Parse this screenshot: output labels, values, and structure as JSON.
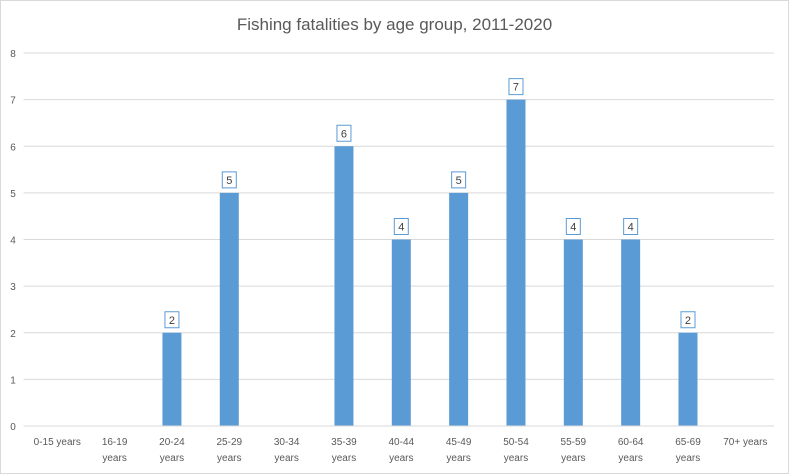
{
  "chart_data": {
    "type": "bar",
    "title": "Fishing fatalities by age group, 2011-2020",
    "categories": [
      "0-15 years",
      "16-19 years",
      "20-24 years",
      "25-29 years",
      "30-34 years",
      "35-39 years",
      "40-44 years",
      "45-49 years",
      "50-54 years",
      "55-59 years",
      "60-64 years",
      "65-69 years",
      "70+ years"
    ],
    "values": [
      0,
      0,
      2,
      5,
      0,
      6,
      4,
      5,
      7,
      4,
      4,
      2,
      0
    ],
    "data_labels": [
      "",
      "",
      "2",
      "5",
      "",
      "6",
      "4",
      "5",
      "7",
      "4",
      "4",
      "2",
      ""
    ],
    "xlabel": "",
    "ylabel": "",
    "ylim": [
      0,
      8
    ],
    "yticks": [
      "0",
      "1",
      "2",
      "3",
      "4",
      "5",
      "6",
      "7",
      "8"
    ],
    "grid": true,
    "legend": "none",
    "bar_color": "#5b9bd5"
  }
}
